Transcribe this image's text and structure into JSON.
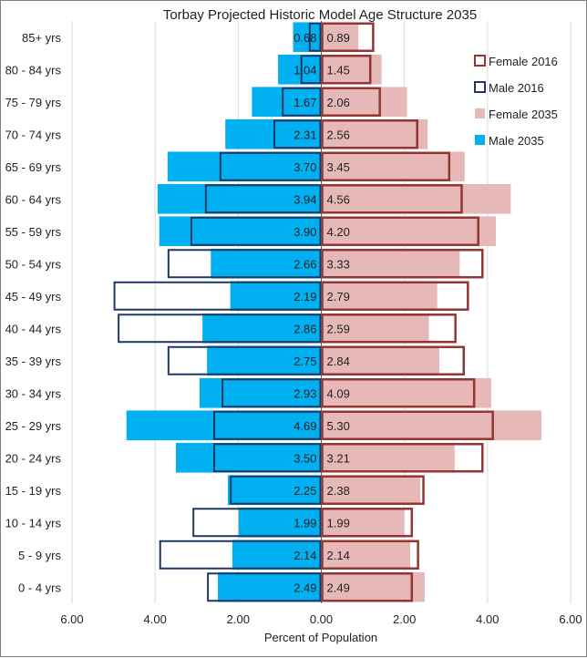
{
  "chart_data": {
    "type": "bar",
    "title": "Torbay Projected Historic Model Age Structure 2035",
    "xlabel": "Percent of Population",
    "ylabel": "",
    "xlim": [
      -6,
      6
    ],
    "x_tick_values": [
      -6,
      -4,
      -2,
      0,
      2,
      4,
      6
    ],
    "x_tick_labels": [
      "6.00",
      "4.00",
      "2.00",
      "0.00",
      "2.00",
      "4.00",
      "6.00"
    ],
    "grid": true,
    "legend_position": "top-right",
    "categories": [
      "85+ yrs",
      "80 - 84 yrs",
      "75 - 79 yrs",
      "70 - 74 yrs",
      "65 - 69 yrs",
      "60 - 64 yrs",
      "55 - 59 yrs",
      "50 - 54 yrs",
      "45 - 49 yrs",
      "40 - 44 yrs",
      "35 - 39 yrs",
      "30 - 34 yrs",
      "25 - 29 yrs",
      "20 - 24 yrs",
      "15 - 19 yrs",
      "10 - 14 yrs",
      "5 - 9 yrs",
      "0 - 4 yrs"
    ],
    "series": [
      {
        "name": "Female 2016",
        "values": [
          1.27,
          1.2,
          1.43,
          2.33,
          3.1,
          3.4,
          3.8,
          3.9,
          3.55,
          3.25,
          3.45,
          3.7,
          4.15,
          3.9,
          2.48,
          2.2,
          2.35,
          2.2
        ]
      },
      {
        "name": "Male 2016",
        "values": [
          0.3,
          0.5,
          0.95,
          1.15,
          2.45,
          2.8,
          3.15,
          3.7,
          5.0,
          4.9,
          3.7,
          2.4,
          2.6,
          2.6,
          2.2,
          3.1,
          3.9,
          2.75
        ]
      },
      {
        "name": "Female 2035",
        "values": [
          0.89,
          1.45,
          2.06,
          2.56,
          3.45,
          4.56,
          4.2,
          3.33,
          2.79,
          2.59,
          2.84,
          4.09,
          5.3,
          3.21,
          2.38,
          1.99,
          2.14,
          2.49
        ]
      },
      {
        "name": "Male 2035",
        "values": [
          0.68,
          1.04,
          1.67,
          2.31,
          3.7,
          3.94,
          3.9,
          2.66,
          2.19,
          2.86,
          2.75,
          2.93,
          4.69,
          3.5,
          2.25,
          1.99,
          2.14,
          2.49
        ]
      }
    ],
    "male_2035_labels": [
      "0.68",
      "1.04",
      "1.67",
      "2.31",
      "3.70",
      "3.94",
      "3.90",
      "2.66",
      "2.19",
      "2.86",
      "2.75",
      "2.93",
      "4.69",
      "3.50",
      "2.25",
      "1.99",
      "2.14",
      "2.49"
    ],
    "female_2035_labels": [
      "0.89",
      "1.45",
      "2.06",
      "2.56",
      "3.45",
      "4.56",
      "4.20",
      "3.33",
      "2.79",
      "2.59",
      "2.84",
      "4.09",
      "5.30",
      "3.21",
      "2.38",
      "1.99",
      "2.14",
      "2.49"
    ],
    "colors": {
      "female_2016": "#943634",
      "male_2016": "#1f3864",
      "female_2035": "#e6b8b7",
      "male_2035": "#00b0f0",
      "grid": "#d9d9d9"
    }
  }
}
